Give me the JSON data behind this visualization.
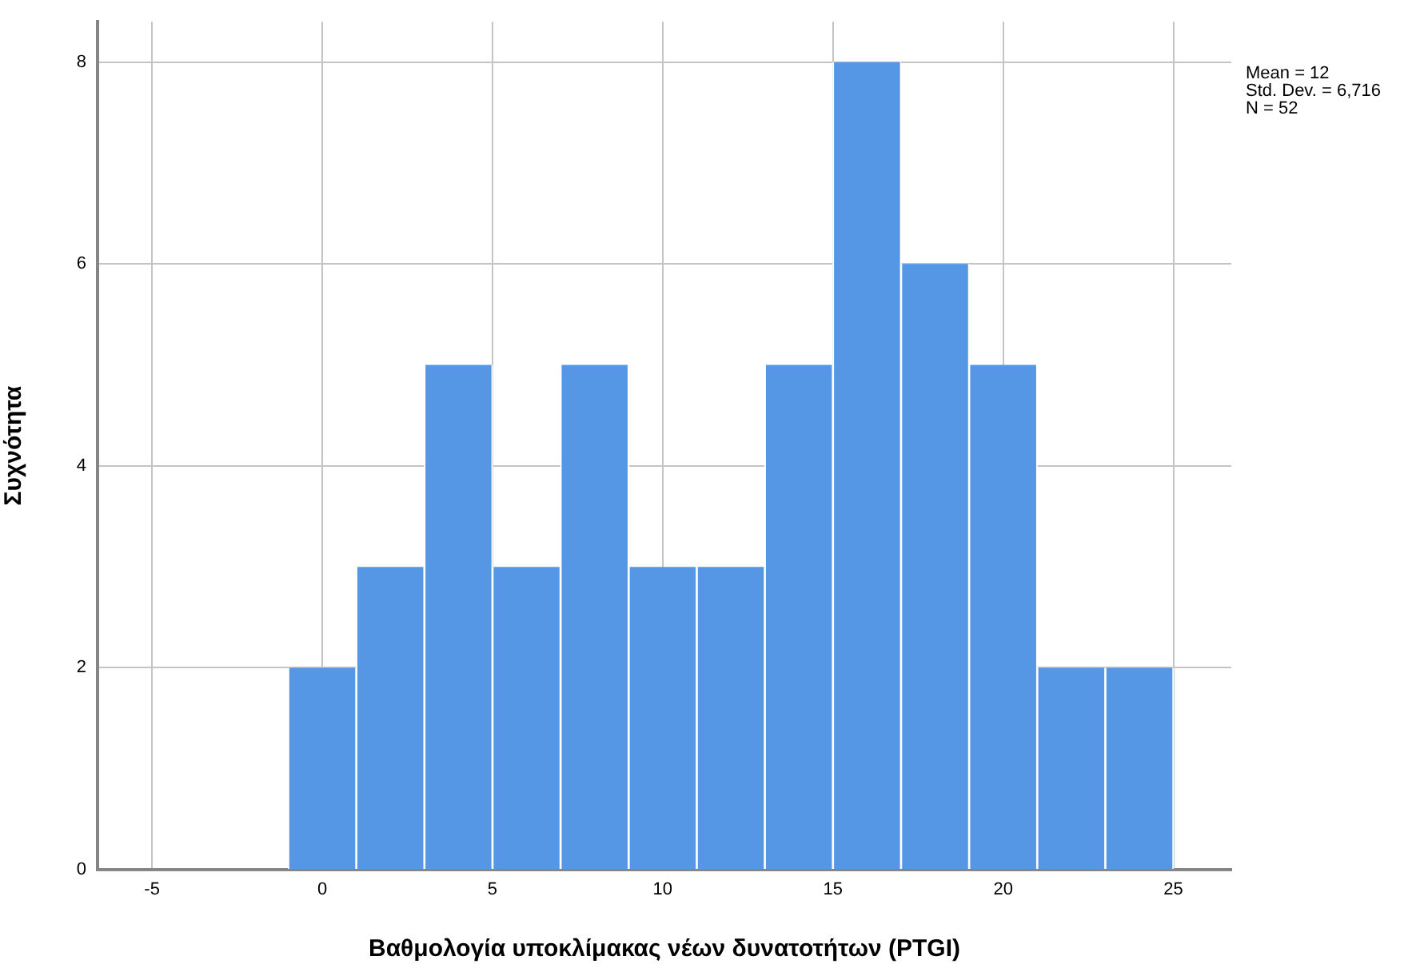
{
  "chart_data": {
    "type": "histogram",
    "xlabel": "Βαθμολογία υποκλίμακας νέων δυνατοτήτων (PTGI)",
    "ylabel": "Συχνότητα",
    "bins": [
      -1,
      1,
      3,
      5,
      7,
      9,
      11,
      13,
      15,
      17,
      19,
      21,
      23,
      25
    ],
    "values": [
      2,
      3,
      5,
      3,
      5,
      3,
      3,
      5,
      8,
      6,
      5,
      2,
      2
    ],
    "color": "#5597e4",
    "xlim": [
      -6.6,
      26.7
    ],
    "xticks": [
      -5,
      0,
      5,
      10,
      15,
      20,
      25
    ],
    "ylim": [
      0,
      8.4
    ],
    "yticks": [
      0,
      2,
      4,
      6,
      8
    ],
    "grid": true,
    "annotations": [
      "Mean = 12",
      "Std. Dev. = 6,716",
      "N = 52"
    ]
  }
}
